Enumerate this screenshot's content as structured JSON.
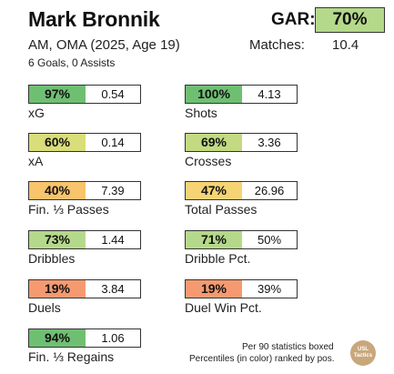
{
  "header": {
    "player_name": "Mark Bronnik",
    "gar_label": "GAR:",
    "gar_value": "70%",
    "gar_color": "#b5d98a",
    "subtitle": "AM, OMA (2025, Age 19)",
    "matches_label": "Matches:",
    "matches_value": "10.4",
    "goals_assists": "6 Goals,  0 Assists"
  },
  "stats": [
    {
      "label": "xG",
      "percentile": "97%",
      "value": "0.54",
      "color": "#6fbf73"
    },
    {
      "label": "Shots",
      "percentile": "100%",
      "value": "4.13",
      "color": "#6fbf73"
    },
    {
      "label": "xA",
      "percentile": "60%",
      "value": "0.14",
      "color": "#d9dd7a"
    },
    {
      "label": "Crosses",
      "percentile": "69%",
      "value": "3.36",
      "color": "#c3da82"
    },
    {
      "label": "Fin. ⅓ Passes",
      "percentile": "40%",
      "value": "7.39",
      "color": "#f8c46c"
    },
    {
      "label": "Total Passes",
      "percentile": "47%",
      "value": "26.96",
      "color": "#f6d475"
    },
    {
      "label": "Dribbles",
      "percentile": "73%",
      "value": "1.44",
      "color": "#b5d98a"
    },
    {
      "label": "Dribble Pct.",
      "percentile": "71%",
      "value": "50%",
      "color": "#b5d98a"
    },
    {
      "label": "Duels",
      "percentile": "19%",
      "value": "3.84",
      "color": "#f59a70"
    },
    {
      "label": "Duel Win Pct.",
      "percentile": "19%",
      "value": "39%",
      "color": "#f59a70"
    },
    {
      "label": "Fin. ⅓ Regains",
      "percentile": "94%",
      "value": "1.06",
      "color": "#6fbf73"
    }
  ],
  "footer": {
    "line1": "Per 90 statistics boxed",
    "line2": "Percentiles (in color) ranked by pos.",
    "logo_text": "USL Tactics"
  }
}
